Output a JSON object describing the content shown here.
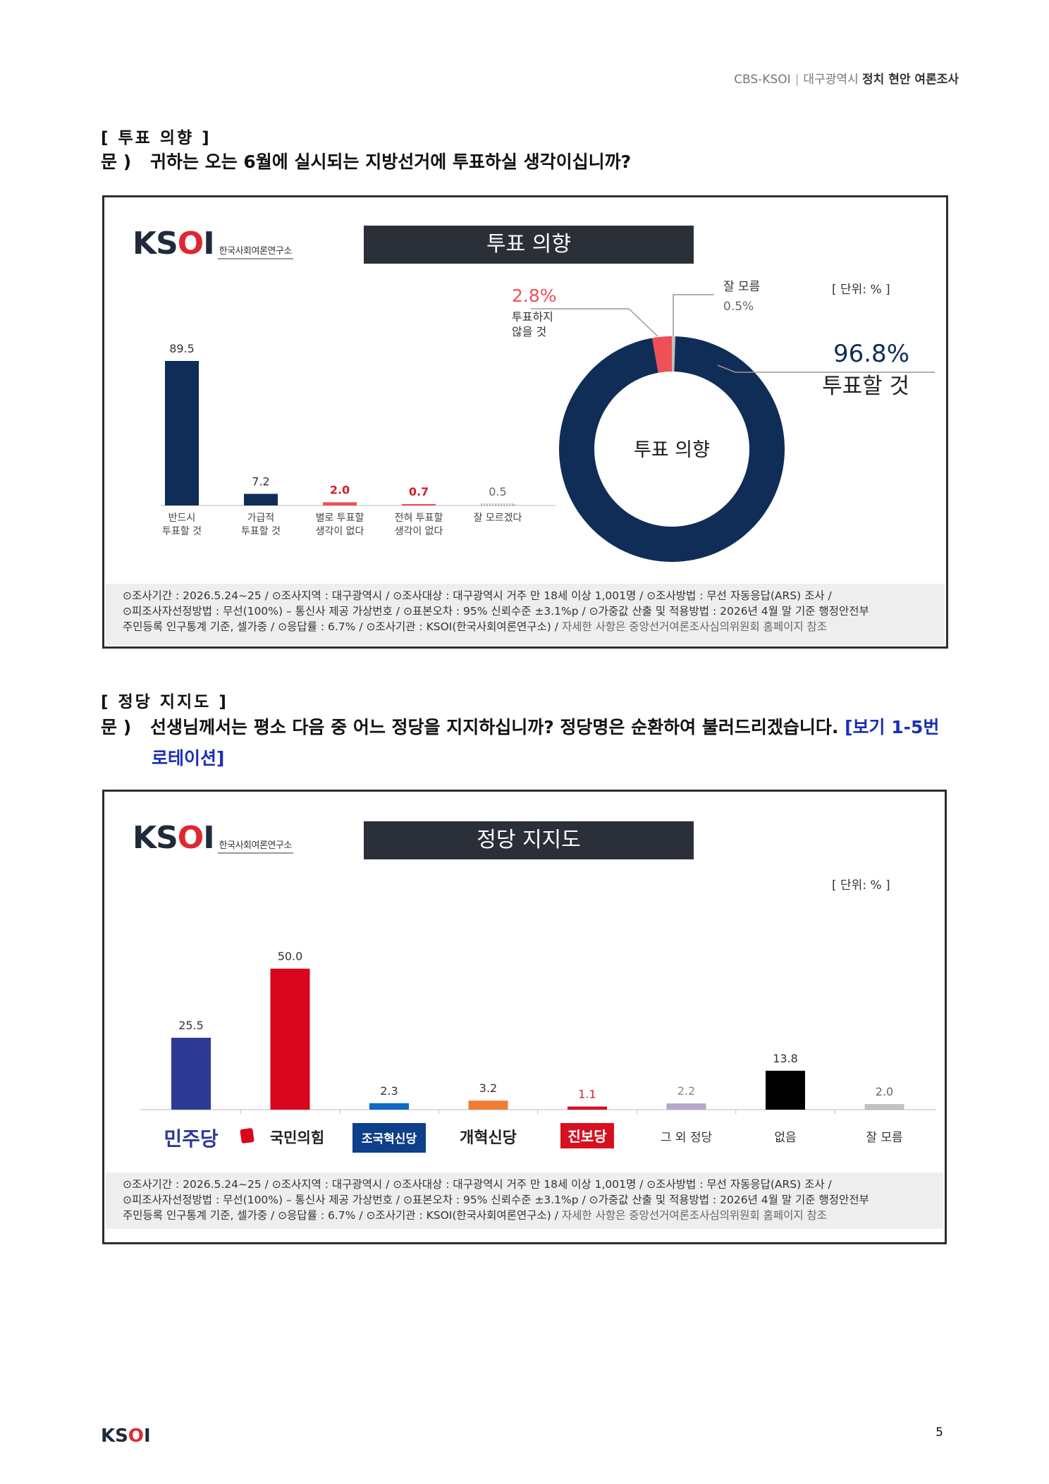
{
  "header": {
    "org": "CBS-KSOI",
    "region": "대구광역시",
    "title": "정치 현안 여론조사"
  },
  "section1": {
    "heading": "[ 투표 의향 ]",
    "q_label": "문 )",
    "question": "귀하는 오는 6월에 실시되는 지방선거에 투표하실 생각이십니까?",
    "logo_text": "KSOI",
    "logo_sub": "한국사회여론연구소",
    "chart_title": "투표 의향",
    "unit": "[ 단위: % ]",
    "donut_center": "투표 의향"
  },
  "section2": {
    "heading": "[ 정당 지지도 ]",
    "q_label": "문 )",
    "question": "선생님께서는 평소 다음 중 어느 정당을 지지하십니까? 정당명은 순환하여 불러드리겠습니다.",
    "question_note_1": "[보기 1-5번",
    "question_note_2": "로테이션]",
    "logo_text": "KSOI",
    "logo_sub": "한국사회여론연구소",
    "chart_title": "정당 지지도",
    "unit": "[ 단위: % ]"
  },
  "footnote": {
    "line1": "⊙조사기간 : 2026.5.24~25 / ⊙조사지역 : 대구광역시 / ⊙조사대상 : 대구광역시 거주 만 18세 이상 1,001명 / ⊙조사방법 : 무선 자동응답(ARS) 조사 /",
    "line2": "⊙피조사자선정방법 : 무선(100%) – 통신사 제공 가상번호 / ⊙표본오차 : 95% 신뢰수준 ±3.1%p / ⊙가중값 산출 및 적용방법 : 2026년 4월 말 기준 행정안전부",
    "line3a": "주민등록 인구통계 기준, 셀가중 / ⊙응답률 : 6.7% / ⊙조사기관 : KSOI(한국사회여론연구소) / ",
    "line3b": "자세한 사항은 중앙선거여론조사심의위원회 홈페이지 참조"
  },
  "page": {
    "logo": "KSOI",
    "number": "5"
  },
  "colors": {
    "navy": "#0f2d57",
    "red": "#ef4f56",
    "gray": "#bfbfbf",
    "minjoo": "#2d3a96",
    "ppp": "#d9051f",
    "jokuk": "#0d69c4",
    "gaehyuk": "#f07c33",
    "jinbo": "#d7101f",
    "other": "#b7a6c8",
    "none": "#000000"
  },
  "chart_data": [
    {
      "type": "bar",
      "categories": [
        "반드시 투표할 것",
        "가급적 투표할 것",
        "별로 투표할 생각이 없다",
        "전혀 투표할 생각이 없다",
        "잘 모르겠다"
      ],
      "values": [
        89.5,
        7.2,
        2.0,
        0.7,
        0.5
      ],
      "value_labels": [
        "89.5",
        "7.2",
        "2.0",
        "0.7",
        "0.5"
      ]
    },
    {
      "type": "pie",
      "title": "투표 의향",
      "slices": [
        {
          "label": "투표할 것",
          "value": 96.8,
          "display": "96.8%"
        },
        {
          "label": "투표하지 않을 것",
          "value": 2.8,
          "display": "2.8%"
        },
        {
          "label": "잘 모름",
          "value": 0.5,
          "display": "0.5%"
        }
      ]
    },
    {
      "type": "bar",
      "title": "정당 지지도",
      "categories": [
        "민주당",
        "국민의힘",
        "조국혁신당",
        "개혁신당",
        "진보당",
        "그 외 정당",
        "없음",
        "잘 모름"
      ],
      "values": [
        25.5,
        50.0,
        2.3,
        3.2,
        1.1,
        2.2,
        13.8,
        2.0
      ],
      "value_labels": [
        "25.5",
        "50.0",
        "2.3",
        "3.2",
        "1.1",
        "2.2",
        "13.8",
        "2.0"
      ]
    }
  ]
}
